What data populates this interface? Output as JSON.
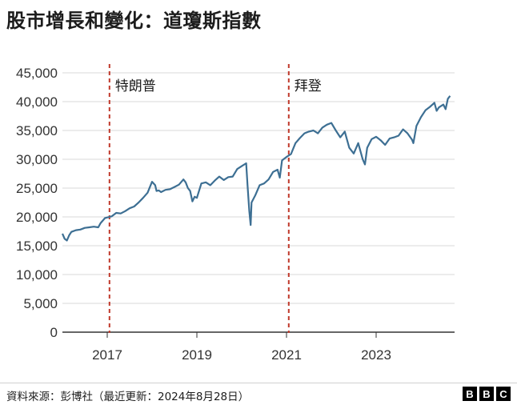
{
  "title": "股市增長和變化：道瓊斯指數",
  "source": "資料來源：彭博社（最近更新：2024年8月28日）",
  "logo": {
    "letters": [
      "B",
      "B",
      "C"
    ]
  },
  "chart_data": {
    "type": "line",
    "title": "股市增長和變化：道瓊斯指數",
    "xlabel": "",
    "ylabel": "",
    "xlim": [
      2016.0,
      2024.75
    ],
    "ylim": [
      0,
      45000
    ],
    "yticks": [
      0,
      5000,
      10000,
      15000,
      20000,
      25000,
      30000,
      35000,
      40000,
      45000
    ],
    "ytick_labels": [
      "0",
      "5,000",
      "10,000",
      "15,000",
      "20,000",
      "25,000",
      "30,000",
      "35,000",
      "40,000",
      "45,000"
    ],
    "xticks": [
      2017,
      2019,
      2021,
      2023
    ],
    "xtick_labels": [
      "2017",
      "2019",
      "2021",
      "2023"
    ],
    "grid": "horizontal",
    "line_color": "#3d6f93",
    "annotation_color": "#c0392b",
    "series": [
      {
        "x": [
          2016.0,
          2016.05,
          2016.1,
          2016.15,
          2016.2,
          2016.3,
          2016.4,
          2016.5,
          2016.6,
          2016.7,
          2016.8,
          2016.85,
          2016.95,
          2017.0,
          2017.1,
          2017.2,
          2017.3,
          2017.4,
          2017.5,
          2017.6,
          2017.7,
          2017.8,
          2017.9,
          2018.0,
          2018.07,
          2018.1,
          2018.15,
          2018.2,
          2018.3,
          2018.4,
          2018.5,
          2018.6,
          2018.7,
          2018.75,
          2018.8,
          2018.85,
          2018.9,
          2018.95,
          2019.0,
          2019.1,
          2019.2,
          2019.3,
          2019.4,
          2019.5,
          2019.6,
          2019.7,
          2019.8,
          2019.9,
          2020.0,
          2020.1,
          2020.13,
          2020.17,
          2020.2,
          2020.22,
          2020.3,
          2020.4,
          2020.5,
          2020.6,
          2020.7,
          2020.8,
          2020.85,
          2020.9,
          2021.0,
          2021.1,
          2021.2,
          2021.3,
          2021.4,
          2021.5,
          2021.6,
          2021.7,
          2021.8,
          2021.9,
          2022.0,
          2022.1,
          2022.2,
          2022.3,
          2022.4,
          2022.45,
          2022.5,
          2022.6,
          2022.7,
          2022.75,
          2022.8,
          2022.9,
          2023.0,
          2023.1,
          2023.2,
          2023.3,
          2023.4,
          2023.5,
          2023.6,
          2023.7,
          2023.8,
          2023.83,
          2023.9,
          2024.0,
          2024.1,
          2024.2,
          2024.3,
          2024.35,
          2024.4,
          2024.5,
          2024.55,
          2024.6,
          2024.65
        ],
        "y": [
          17100,
          16200,
          15900,
          16800,
          17400,
          17700,
          17800,
          18100,
          18200,
          18300,
          18200,
          18900,
          19800,
          19900,
          20100,
          20700,
          20600,
          21000,
          21500,
          21800,
          22500,
          23300,
          24200,
          26100,
          25500,
          24500,
          24600,
          24300,
          24700,
          24800,
          25200,
          25600,
          26500,
          26000,
          25000,
          24500,
          22700,
          23500,
          23300,
          25800,
          26000,
          25500,
          26300,
          27000,
          26400,
          26900,
          27000,
          28300,
          28800,
          29300,
          25500,
          21000,
          18600,
          22500,
          23700,
          25500,
          25800,
          26500,
          27800,
          28200,
          26800,
          29800,
          30400,
          30900,
          32800,
          33700,
          34500,
          34800,
          35000,
          34500,
          35500,
          36000,
          36300,
          35000,
          33800,
          34800,
          32000,
          31500,
          31000,
          32800,
          30000,
          29100,
          32000,
          33500,
          33900,
          33300,
          32500,
          33600,
          33800,
          34100,
          35200,
          34500,
          33400,
          32800,
          35800,
          37300,
          38500,
          39100,
          39800,
          38400,
          39000,
          39500,
          38700,
          40500,
          41000
        ]
      }
    ],
    "annotations": [
      {
        "x": 2017.05,
        "label": "特朗普"
      },
      {
        "x": 2021.05,
        "label": "拜登"
      }
    ]
  }
}
